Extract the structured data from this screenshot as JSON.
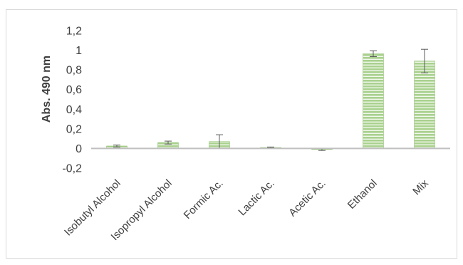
{
  "chart_data": {
    "type": "bar",
    "title": "",
    "xlabel": "",
    "ylabel": "Abs. 490 nm",
    "ylim": [
      -0.2,
      1.2
    ],
    "yticks": [
      -0.2,
      0,
      0.2,
      0.4,
      0.6,
      0.8,
      1,
      1.2
    ],
    "ytick_labels": [
      "-0,2",
      "0",
      "0,2",
      "0,4",
      "0,6",
      "0,8",
      "1",
      "1,2"
    ],
    "categories": [
      "Isobutyl Alcohol",
      "Isopropyl Alcohol",
      "Formic Ac.",
      "Lactic Ac.",
      "Acetic Ac.",
      "Ethanol",
      "Mix"
    ],
    "values": [
      0.025,
      0.06,
      0.07,
      0.01,
      -0.01,
      0.965,
      0.89
    ],
    "errors": [
      0.01,
      0.015,
      0.07,
      0.005,
      0.01,
      0.03,
      0.12
    ],
    "grid": false,
    "legend": "none",
    "colors": {
      "bar_fill": "#a9d18e",
      "bar_stripe": "#ffffff",
      "bar_stroke": "#8bbd6a",
      "axis": "#bfbfbf",
      "error_bar": "#595959"
    }
  }
}
